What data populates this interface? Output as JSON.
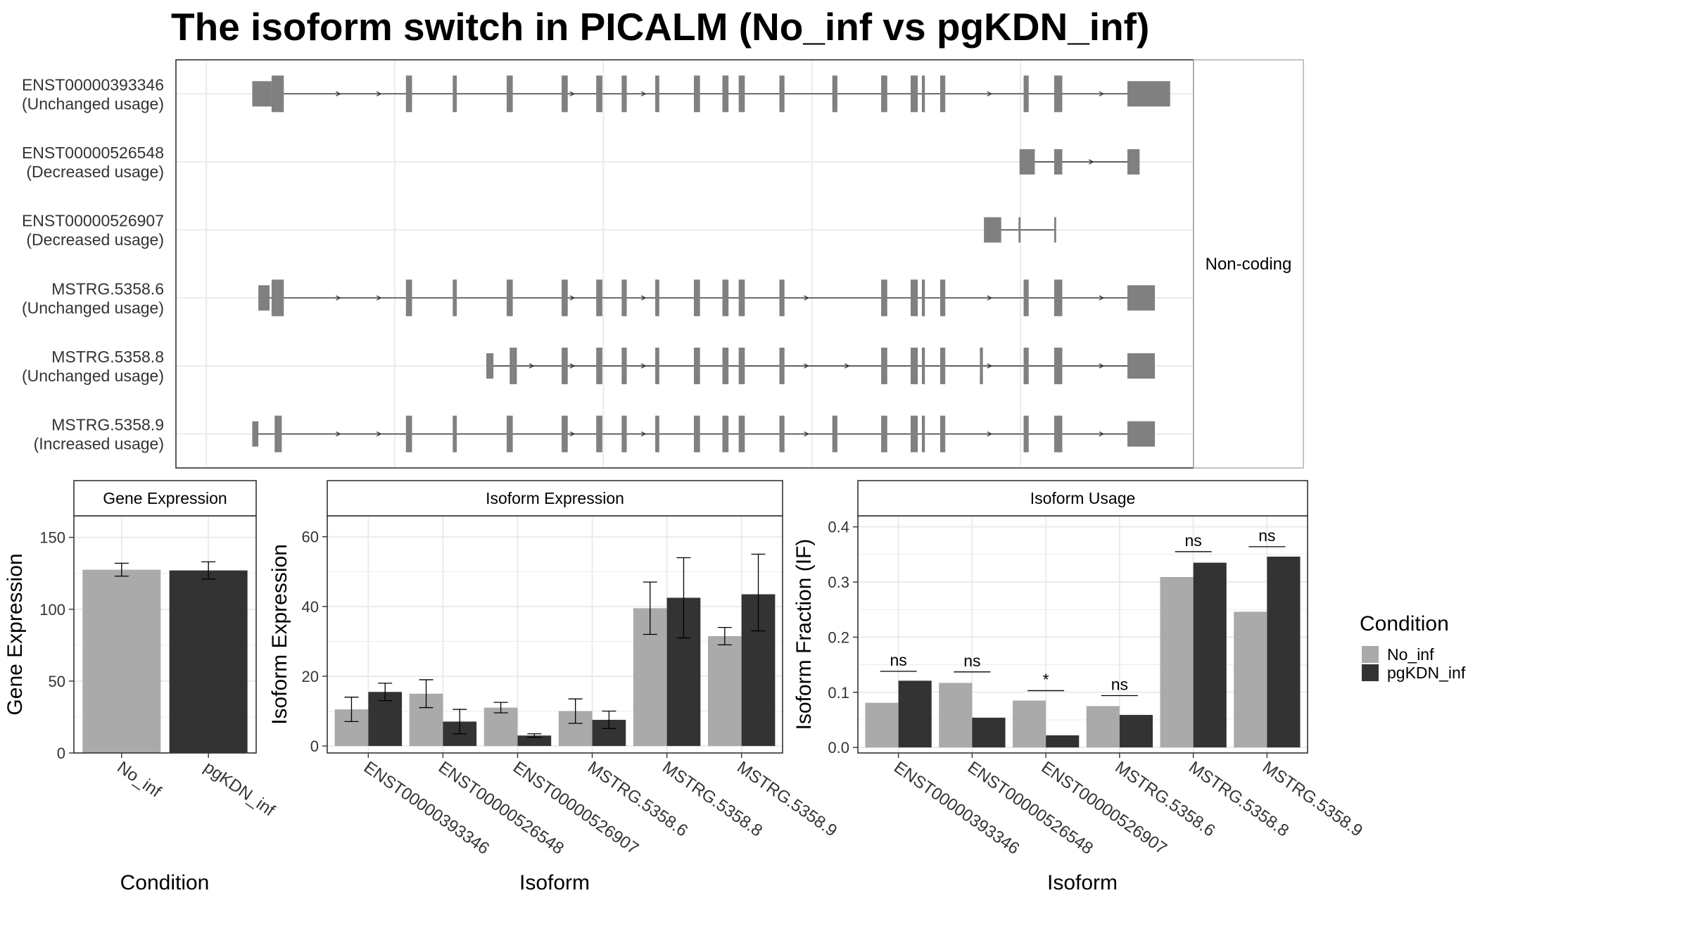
{
  "title": "The isoform switch in PICALM (No_inf vs pgKDN_inf)",
  "structure_panel": {
    "strip_label": "Non-coding",
    "isoforms": [
      {
        "id": "ENST00000393346",
        "usage": "(Unchanged usage)",
        "exons": [
          [
            0.075,
            0.094
          ],
          [
            0.094,
            0.106
          ],
          [
            0.226,
            0.232
          ],
          [
            0.272,
            0.276
          ],
          [
            0.325,
            0.331
          ],
          [
            0.379,
            0.385
          ],
          [
            0.413,
            0.419
          ],
          [
            0.438,
            0.443
          ],
          [
            0.471,
            0.475
          ],
          [
            0.509,
            0.515
          ],
          [
            0.537,
            0.543
          ],
          [
            0.553,
            0.559
          ],
          [
            0.593,
            0.598
          ],
          [
            0.645,
            0.65
          ],
          [
            0.693,
            0.699
          ],
          [
            0.722,
            0.729
          ],
          [
            0.733,
            0.736
          ],
          [
            0.751,
            0.756
          ],
          [
            0.833,
            0.838
          ],
          [
            0.863,
            0.871
          ],
          [
            0.935,
            0.977
          ]
        ],
        "thick": [
          1,
          20
        ],
        "arrows": [
          0.16,
          0.2,
          0.39,
          0.46,
          0.8,
          0.91
        ]
      },
      {
        "id": "ENST00000526548",
        "usage": "(Decreased usage)",
        "exons": [
          [
            0.829,
            0.844
          ],
          [
            0.863,
            0.871
          ],
          [
            0.935,
            0.947
          ]
        ],
        "thick": [],
        "arrows": [
          0.9
        ]
      },
      {
        "id": "ENST00000526907",
        "usage": "(Decreased usage)",
        "exons": [
          [
            0.794,
            0.811
          ],
          [
            0.828,
            0.83
          ],
          [
            0.863,
            0.865
          ]
        ],
        "thick": [],
        "arrows": []
      },
      {
        "id": "MSTRG.5358.6",
        "usage": "(Unchanged usage)",
        "exons": [
          [
            0.081,
            0.092
          ],
          [
            0.094,
            0.106
          ],
          [
            0.226,
            0.232
          ],
          [
            0.272,
            0.276
          ],
          [
            0.325,
            0.331
          ],
          [
            0.379,
            0.385
          ],
          [
            0.413,
            0.419
          ],
          [
            0.438,
            0.443
          ],
          [
            0.471,
            0.475
          ],
          [
            0.509,
            0.515
          ],
          [
            0.537,
            0.543
          ],
          [
            0.553,
            0.559
          ],
          [
            0.593,
            0.598
          ],
          [
            0.693,
            0.699
          ],
          [
            0.722,
            0.729
          ],
          [
            0.733,
            0.736
          ],
          [
            0.751,
            0.756
          ],
          [
            0.833,
            0.838
          ],
          [
            0.863,
            0.871
          ],
          [
            0.935,
            0.962
          ]
        ],
        "thick": [
          1,
          19
        ],
        "arrows": [
          0.16,
          0.2,
          0.39,
          0.46,
          0.62,
          0.8,
          0.91
        ]
      },
      {
        "id": "MSTRG.5358.8",
        "usage": "(Unchanged usage)",
        "exons": [
          [
            0.305,
            0.312
          ],
          [
            0.328,
            0.331
          ],
          [
            0.331,
            0.335
          ],
          [
            0.379,
            0.385
          ],
          [
            0.413,
            0.419
          ],
          [
            0.438,
            0.443
          ],
          [
            0.471,
            0.475
          ],
          [
            0.509,
            0.515
          ],
          [
            0.537,
            0.543
          ],
          [
            0.553,
            0.559
          ],
          [
            0.593,
            0.598
          ],
          [
            0.693,
            0.699
          ],
          [
            0.722,
            0.729
          ],
          [
            0.733,
            0.736
          ],
          [
            0.751,
            0.756
          ],
          [
            0.79,
            0.793
          ],
          [
            0.833,
            0.838
          ],
          [
            0.863,
            0.871
          ],
          [
            0.935,
            0.962
          ]
        ],
        "thick": [
          1,
          18
        ],
        "arrows": [
          0.35,
          0.39,
          0.46,
          0.62,
          0.66,
          0.8,
          0.91
        ]
      },
      {
        "id": "MSTRG.5358.9",
        "usage": "(Increased usage)",
        "exons": [
          [
            0.075,
            0.081
          ],
          [
            0.097,
            0.101
          ],
          [
            0.101,
            0.104
          ],
          [
            0.226,
            0.232
          ],
          [
            0.272,
            0.276
          ],
          [
            0.325,
            0.331
          ],
          [
            0.379,
            0.385
          ],
          [
            0.413,
            0.419
          ],
          [
            0.438,
            0.443
          ],
          [
            0.471,
            0.475
          ],
          [
            0.509,
            0.515
          ],
          [
            0.537,
            0.543
          ],
          [
            0.553,
            0.559
          ],
          [
            0.593,
            0.598
          ],
          [
            0.645,
            0.65
          ],
          [
            0.693,
            0.699
          ],
          [
            0.722,
            0.729
          ],
          [
            0.733,
            0.736
          ],
          [
            0.751,
            0.756
          ],
          [
            0.833,
            0.838
          ],
          [
            0.863,
            0.871
          ],
          [
            0.935,
            0.962
          ]
        ],
        "thick": [
          1,
          21
        ],
        "arrows": [
          0.16,
          0.2,
          0.39,
          0.46,
          0.62,
          0.8,
          0.91
        ]
      }
    ]
  },
  "legend": {
    "title": "Condition",
    "entries": [
      {
        "label": "No_inf",
        "color": "#aaaaaa"
      },
      {
        "label": "pgKDN_inf",
        "color": "#333333"
      }
    ]
  },
  "chart_data": [
    {
      "type": "bar",
      "title": "Gene Expression",
      "xlabel": "Condition",
      "ylabel": "Gene Expression",
      "categories": [
        "No_inf",
        "pgKDN_inf"
      ],
      "values": [
        127.5,
        127.0
      ],
      "errors": [
        [
          123,
          132
        ],
        [
          121,
          133
        ]
      ],
      "colors": [
        "#aaaaaa",
        "#333333"
      ],
      "ylim": [
        0,
        165
      ],
      "yticks": [
        0,
        50,
        100,
        150
      ]
    },
    {
      "type": "bar",
      "title": "Isoform Expression",
      "xlabel": "Isoform",
      "ylabel": "Isoform Expression",
      "categories": [
        "ENST00000393346",
        "ENST00000526548",
        "ENST00000526907",
        "MSTRG.5358.6",
        "MSTRG.5358.8",
        "MSTRG.5358.9"
      ],
      "series": [
        {
          "name": "No_inf",
          "values": [
            10.5,
            15.0,
            11.0,
            10.0,
            39.5,
            31.5
          ],
          "errors": [
            [
              7,
              14
            ],
            [
              11,
              19
            ],
            [
              9.5,
              12.5
            ],
            [
              6.5,
              13.5
            ],
            [
              32,
              47
            ],
            [
              29,
              34
            ]
          ]
        },
        {
          "name": "pgKDN_inf",
          "values": [
            15.5,
            7.0,
            3.0,
            7.5,
            42.5,
            43.5
          ],
          "errors": [
            [
              13,
              18
            ],
            [
              3.5,
              10.5
            ],
            [
              2.5,
              3.5
            ],
            [
              5,
              10
            ],
            [
              31,
              54
            ],
            [
              33,
              55
            ]
          ]
        }
      ],
      "ylim": [
        -2,
        66
      ],
      "yticks": [
        0,
        20,
        40,
        60
      ]
    },
    {
      "type": "bar",
      "title": "Isoform Usage",
      "xlabel": "Isoform",
      "ylabel": "Isoform Fraction (IF)",
      "categories": [
        "ENST00000393346",
        "ENST00000526548",
        "ENST00000526907",
        "MSTRG.5358.6",
        "MSTRG.5358.8",
        "MSTRG.5358.9"
      ],
      "series": [
        {
          "name": "No_inf",
          "values": [
            0.081,
            0.117,
            0.085,
            0.075,
            0.309,
            0.246
          ]
        },
        {
          "name": "pgKDN_inf",
          "values": [
            0.121,
            0.054,
            0.022,
            0.059,
            0.335,
            0.346
          ]
        }
      ],
      "significance": [
        "ns",
        "ns",
        "*",
        "ns",
        "ns",
        "ns"
      ],
      "sig_y": [
        0.138,
        0.137,
        0.103,
        0.094,
        0.355,
        0.364
      ],
      "ylim": [
        -0.01,
        0.42
      ],
      "yticks": [
        0.0,
        0.1,
        0.2,
        0.3,
        0.4
      ]
    }
  ]
}
